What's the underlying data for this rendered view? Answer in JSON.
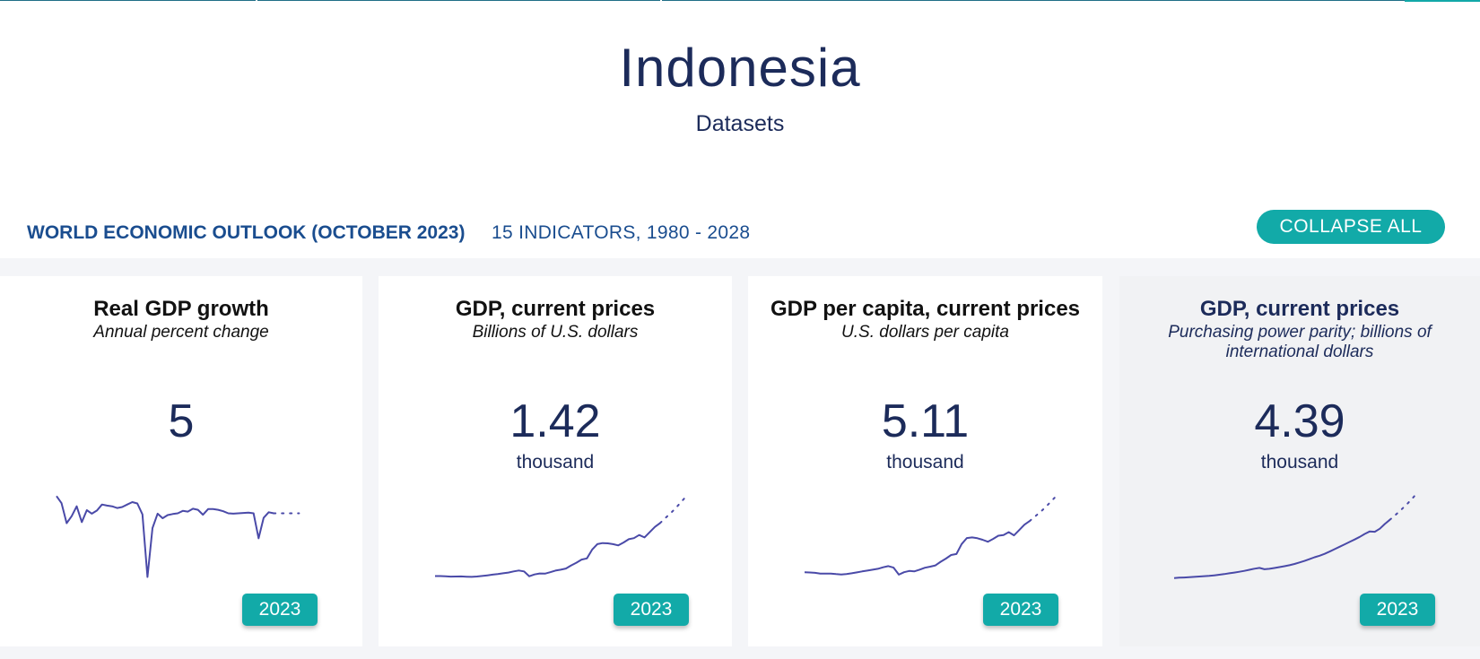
{
  "country": {
    "name": "Indonesia",
    "subtitle": "Datasets"
  },
  "dataset": {
    "title": "WORLD ECONOMIC OUTLOOK (OCTOBER 2023)",
    "meta": "15 INDICATORS, 1980 - 2028",
    "collapse_label": "COLLAPSE ALL"
  },
  "colors": {
    "accent": "#12aaa8",
    "navy": "#1c2b5a",
    "link": "#1a4d8f",
    "sparkline": "#4a4aa8"
  },
  "cards": [
    {
      "title": "Real GDP growth",
      "units": "Annual percent change",
      "value": "5",
      "scale": "",
      "year": "2023",
      "series_actual": [
        9.9,
        7.9,
        2.2,
        4.2,
        7.0,
        2.5,
        5.9,
        4.9,
        5.8,
        7.5,
        7.2,
        7.0,
        6.5,
        6.8,
        7.5,
        8.2,
        7.8,
        4.7,
        -13.1,
        0.8,
        4.9,
        3.6,
        4.5,
        4.8,
        5.0,
        5.7,
        5.5,
        6.3,
        6.0,
        4.6,
        6.2,
        6.2,
        6.0,
        5.6,
        5.0,
        4.9,
        5.0,
        5.1,
        5.2,
        5.0,
        -2.1,
        3.7,
        5.3,
        5.0
      ],
      "series_projection": [
        5.0,
        5.0,
        5.0,
        5.0,
        5.0,
        5.0
      ]
    },
    {
      "title": "GDP, current prices",
      "units": "Billions of U.S. dollars",
      "value": "1.42",
      "scale": "thousand",
      "year": "2023",
      "series_actual": [
        99,
        99,
        96,
        86,
        90,
        92,
        85,
        80,
        90,
        102,
        119,
        135,
        150,
        168,
        186,
        215,
        238,
        216,
        95,
        140,
        165,
        160,
        196,
        235,
        257,
        286,
        365,
        432,
        510,
        539,
        755,
        893,
        918,
        913,
        891,
        861,
        932,
        1015,
        1042,
        1119,
        1059,
        1187,
        1319,
        1417
      ],
      "series_projection": [
        1417,
        1542,
        1660,
        1791,
        1935,
        2085
      ]
    },
    {
      "title": "GDP per capita, current prices",
      "units": "U.S. dollars per capita",
      "value": "5.11",
      "scale": "thousand",
      "year": "2023",
      "series_actual": [
        672,
        660,
        630,
        555,
        570,
        570,
        520,
        490,
        530,
        590,
        670,
        750,
        820,
        900,
        980,
        1110,
        1210,
        1080,
        470,
        680,
        790,
        760,
        910,
        1070,
        1160,
        1270,
        1590,
        1860,
        2170,
        2260,
        3120,
        3640,
        3690,
        3620,
        3490,
        3320,
        3560,
        3840,
        3900,
        4150,
        3870,
        4330,
        4790,
        5110
      ],
      "series_projection": [
        5110,
        5500,
        5880,
        6300,
        6760,
        7240
      ]
    },
    {
      "title": "GDP, current prices",
      "units": "Purchasing power parity; billions of international dollars",
      "value": "4.39",
      "scale": "thousand",
      "year": "2023",
      "series_actual": [
        150,
        175,
        190,
        210,
        235,
        260,
        285,
        310,
        345,
        390,
        440,
        495,
        550,
        610,
        675,
        750,
        830,
        885,
        790,
        820,
        880,
        945,
        1010,
        1085,
        1175,
        1285,
        1395,
        1525,
        1665,
        1775,
        1915,
        2075,
        2250,
        2430,
        2605,
        2780,
        2960,
        3150,
        3360,
        3545,
        3520,
        3740,
        4090,
        4390
      ],
      "series_projection": [
        4390,
        4700,
        5030,
        5380,
        5750,
        6150
      ]
    }
  ]
}
